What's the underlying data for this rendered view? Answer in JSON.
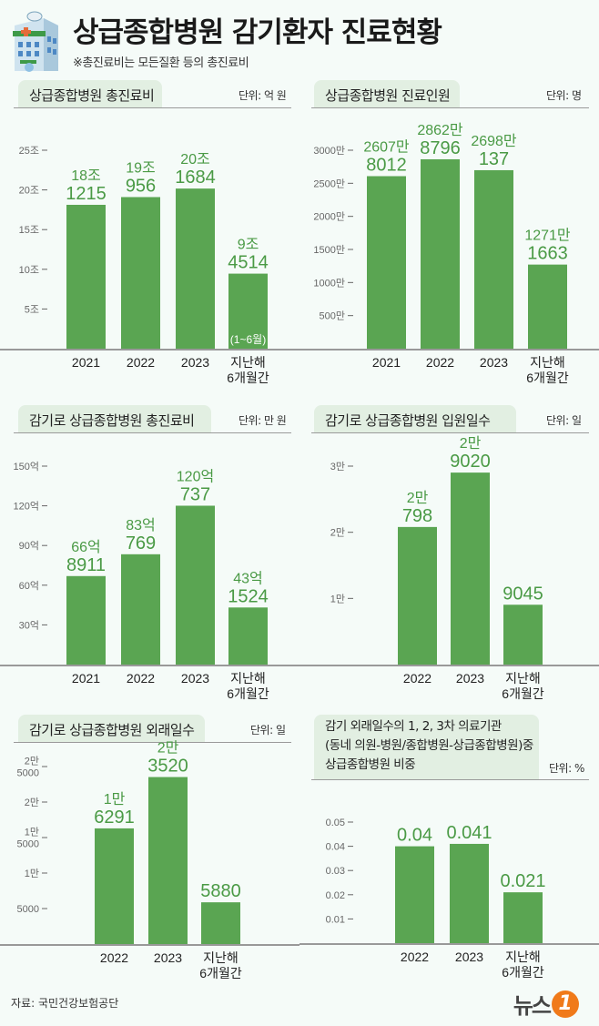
{
  "header": {
    "title": "상급종합병원 감기환자 진료현황",
    "subtitle": "※총진료비는 모든질환 등의 총진료비",
    "icon": "hospital-building-icon"
  },
  "colors": {
    "bar": "#5aa552",
    "value_label": "#4a9a45",
    "panel_header": "#e2efe2",
    "background": "#f5fbf8",
    "logo_accent": "#f07a1a"
  },
  "chart_data": [
    {
      "type": "bar",
      "title": "상급종합병원 총진료비",
      "unit": "단위: 억 원",
      "categories": [
        [
          "2021"
        ],
        [
          "2022"
        ],
        [
          "2023"
        ],
        [
          "지난해",
          "6개월간"
        ]
      ],
      "values": [
        181215,
        190956,
        201684,
        94514
      ],
      "value_labels": [
        [
          "18조",
          "1215"
        ],
        [
          "19조",
          "956"
        ],
        [
          "20조",
          "1684"
        ],
        [
          "9조",
          "4514"
        ]
      ],
      "annotations": [
        {
          "bar": 3,
          "text": "(1~6월)"
        }
      ],
      "yticks": [
        {
          "v": 50000,
          "label": "5조"
        },
        {
          "v": 100000,
          "label": "10조"
        },
        {
          "v": 150000,
          "label": "15조"
        },
        {
          "v": 200000,
          "label": "20조"
        },
        {
          "v": 250000,
          "label": "25조"
        }
      ],
      "ylim": [
        0,
        250000
      ]
    },
    {
      "type": "bar",
      "title": "상급종합병원 진료인원",
      "unit": "단위: 명",
      "categories": [
        [
          "2021"
        ],
        [
          "2022"
        ],
        [
          "2023"
        ],
        [
          "지난해",
          "6개월간"
        ]
      ],
      "values": [
        26078012,
        28628796,
        26980137,
        12711663
      ],
      "value_labels": [
        [
          "2607만",
          "8012"
        ],
        [
          "2862만",
          "8796"
        ],
        [
          "2698만",
          "137"
        ],
        [
          "1271만",
          "1663"
        ]
      ],
      "yticks": [
        {
          "v": 5000000,
          "label": "500만"
        },
        {
          "v": 10000000,
          "label": "1000만"
        },
        {
          "v": 15000000,
          "label": "1500만"
        },
        {
          "v": 20000000,
          "label": "2000만"
        },
        {
          "v": 25000000,
          "label": "2500만"
        },
        {
          "v": 30000000,
          "label": "3000만"
        }
      ],
      "ylim": [
        0,
        30000000
      ]
    },
    {
      "type": "bar",
      "title": "감기로 상급종합병원 총진료비",
      "unit": "단위: 만 원",
      "categories": [
        [
          "2021"
        ],
        [
          "2022"
        ],
        [
          "2023"
        ],
        [
          "지난해",
          "6개월간"
        ]
      ],
      "values": [
        668911,
        833769,
        1200737,
        431524
      ],
      "value_labels": [
        [
          "66억",
          "8911"
        ],
        [
          "83억",
          "769"
        ],
        [
          "120억",
          "737"
        ],
        [
          "43억",
          "1524"
        ]
      ],
      "yticks": [
        {
          "v": 300000,
          "label": "30억"
        },
        {
          "v": 600000,
          "label": "60억"
        },
        {
          "v": 900000,
          "label": "90억"
        },
        {
          "v": 1200000,
          "label": "120억"
        },
        {
          "v": 1500000,
          "label": "150억"
        }
      ],
      "ylim": [
        0,
        1500000
      ]
    },
    {
      "type": "bar",
      "title": "감기로 상급종합병원 입원일수",
      "unit": "단위: 일",
      "categories": [
        [
          "2022"
        ],
        [
          "2023"
        ],
        [
          "지난해",
          "6개월간"
        ]
      ],
      "values": [
        20798,
        29020,
        9045
      ],
      "value_labels": [
        [
          "2만",
          "798"
        ],
        [
          "2만",
          "9020"
        ],
        [
          "",
          "9045"
        ]
      ],
      "yticks": [
        {
          "v": 10000,
          "label": "1만"
        },
        {
          "v": 20000,
          "label": "2만"
        },
        {
          "v": 30000,
          "label": "3만"
        }
      ],
      "ylim": [
        0,
        30000
      ]
    },
    {
      "type": "bar",
      "title": "감기로 상급종합병원 외래일수",
      "unit": "단위: 일",
      "categories": [
        [
          "2022"
        ],
        [
          "2023"
        ],
        [
          "지난해",
          "6개월간"
        ]
      ],
      "values": [
        16291,
        23520,
        5880
      ],
      "value_labels": [
        [
          "1만",
          "6291"
        ],
        [
          "2만",
          "3520"
        ],
        [
          "",
          "5880"
        ]
      ],
      "yticks": [
        {
          "v": 5000,
          "label": "5000"
        },
        {
          "v": 10000,
          "label": "1만"
        },
        {
          "v": 15000,
          "label": "1만\n5000"
        },
        {
          "v": 20000,
          "label": "2만"
        },
        {
          "v": 25000,
          "label": "2만\n5000"
        }
      ],
      "ylim": [
        0,
        25000
      ]
    },
    {
      "type": "bar",
      "title": "감기 외래일수의 1, 2, 3차 의료기관\n(동네 의원-병원/종합병원-상급종합병원)중\n상급종합병원 비중",
      "unit": "단위: %",
      "categories": [
        [
          "2022"
        ],
        [
          "2023"
        ],
        [
          "지난해",
          "6개월간"
        ]
      ],
      "values": [
        0.04,
        0.041,
        0.021
      ],
      "value_labels": [
        [
          "",
          "0.04"
        ],
        [
          "",
          "0.041"
        ],
        [
          "",
          "0.021"
        ]
      ],
      "yticks": [
        {
          "v": 0.01,
          "label": "0.01"
        },
        {
          "v": 0.02,
          "label": "0.02"
        },
        {
          "v": 0.03,
          "label": "0.03"
        },
        {
          "v": 0.04,
          "label": "0.04"
        },
        {
          "v": 0.05,
          "label": "0.05"
        }
      ],
      "ylim": [
        0,
        0.05
      ]
    }
  ],
  "footer": {
    "source": "자료: 국민건강보험공단",
    "logo_text": "뉴스",
    "logo_mark": "1"
  }
}
